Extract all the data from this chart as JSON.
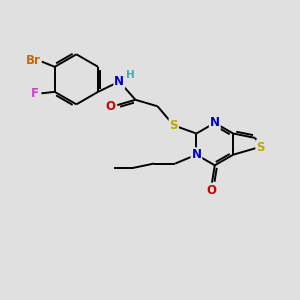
{
  "bg_color": "#e0e0e0",
  "bond_color": "#000000",
  "atom_colors": {
    "Br": "#cc6600",
    "F": "#cc44cc",
    "N": "#0000cc",
    "O": "#cc0000",
    "S": "#bbaa00",
    "H": "#44aaaa",
    "C": "#000000"
  },
  "font_size": 8.5,
  "lw": 1.4
}
